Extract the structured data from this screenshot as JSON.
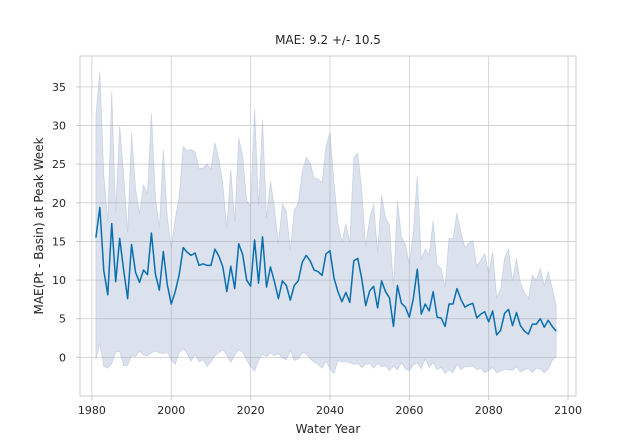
{
  "chart_data": {
    "type": "line",
    "title": "MAE: 9.2 +/- 10.5",
    "xlabel": "Water Year",
    "ylabel": "MAE(Pt - Basin) at Peak Week",
    "xlim": [
      1977,
      2102
    ],
    "ylim": [
      -5,
      39
    ],
    "xticks": [
      1980,
      2000,
      2020,
      2040,
      2060,
      2080,
      2100
    ],
    "yticks": [
      0,
      5,
      10,
      15,
      20,
      25,
      30,
      35
    ],
    "grid": true,
    "legend": "none",
    "colors": {
      "line": "#0a6fae",
      "band": "#8ea2c8",
      "grid": "#cccccc",
      "text": "#262626"
    },
    "series": [
      {
        "x": [
          1981,
          1982,
          1983,
          1984,
          1985,
          1986,
          1987,
          1988,
          1989,
          1990,
          1991,
          1992,
          1993,
          1994,
          1995,
          1996,
          1997,
          1998,
          1999,
          2000,
          2001,
          2002,
          2003,
          2004,
          2005,
          2006,
          2007,
          2008,
          2009,
          2010,
          2011,
          2012,
          2013,
          2014,
          2015,
          2016,
          2017,
          2018,
          2019,
          2020,
          2021,
          2022,
          2023,
          2024,
          2025,
          2026,
          2027,
          2028,
          2029,
          2030,
          2031,
          2032,
          2033,
          2034,
          2035,
          2036,
          2037,
          2038,
          2039,
          2040,
          2041,
          2042,
          2043,
          2044,
          2045,
          2046,
          2047,
          2048,
          2049,
          2050,
          2051,
          2052,
          2053,
          2054,
          2055,
          2056,
          2057,
          2058,
          2059,
          2060,
          2061,
          2062,
          2063,
          2064,
          2065,
          2066,
          2067,
          2068,
          2069,
          2070,
          2071,
          2072,
          2073,
          2074,
          2075,
          2076,
          2077,
          2078,
          2079,
          2080,
          2081,
          2082,
          2083,
          2084,
          2085,
          2086,
          2087,
          2088,
          2089,
          2090,
          2091,
          2092,
          2093,
          2094,
          2095,
          2096,
          2097
        ],
        "y": [
          15.5,
          19.4,
          11.2,
          8.1,
          17.3,
          9.8,
          15.4,
          11.3,
          7.6,
          14.6,
          11.0,
          9.7,
          11.3,
          10.7,
          16.1,
          10.8,
          8.7,
          13.7,
          9.4,
          6.9,
          8.5,
          10.7,
          14.2,
          13.6,
          13.2,
          13.5,
          11.9,
          12.1,
          11.9,
          11.9,
          14.0,
          13.1,
          11.7,
          8.5,
          11.8,
          8.9,
          14.7,
          13.3,
          10.0,
          9.2,
          15.2,
          9.6,
          15.6,
          9.1,
          11.7,
          9.8,
          7.6,
          9.9,
          9.3,
          7.4,
          9.3,
          9.9,
          12.3,
          13.2,
          12.5,
          11.3,
          11.1,
          10.6,
          13.4,
          13.8,
          10.3,
          8.5,
          7.2,
          8.4,
          7.1,
          12.5,
          12.8,
          10.2,
          6.7,
          8.6,
          9.2,
          6.4,
          9.9,
          8.5,
          7.7,
          4.0,
          9.3,
          7.0,
          6.5,
          5.2,
          7.6,
          11.4,
          5.6,
          6.9,
          6.0,
          8.5,
          5.2,
          5.1,
          4.0,
          6.9,
          6.9,
          8.9,
          7.5,
          6.5,
          6.8,
          7.0,
          5.1,
          5.6,
          5.9,
          4.6,
          6.0,
          2.9,
          3.5,
          5.7,
          6.2,
          4.1,
          5.8,
          4.1,
          3.4,
          3.0,
          4.3,
          4.3,
          5.0,
          3.9,
          4.8,
          4.0,
          3.4
        ],
        "lower": [
          -0.3,
          1.8,
          -1.2,
          -1.4,
          -0.8,
          0.7,
          0.8,
          -1.1,
          -1.0,
          0.2,
          0.1,
          0.8,
          0.3,
          0.2,
          0.6,
          0.8,
          0.6,
          0.5,
          0.7,
          -0.4,
          -0.9,
          0.6,
          1.1,
          0.5,
          -0.5,
          0.4,
          -0.6,
          -0.3,
          -1.2,
          -0.6,
          0.2,
          0.6,
          1.0,
          0.3,
          -0.7,
          0.3,
          1.0,
          0.6,
          -0.3,
          -1.2,
          -1.8,
          -0.4,
          0.4,
          0.1,
          0.6,
          0.2,
          0.5,
          -0.1,
          -0.3,
          0.9,
          -0.4,
          -0.2,
          0.6,
          0.5,
          -0.2,
          -0.6,
          -0.9,
          -1.4,
          -0.5,
          -1.5,
          -2.1,
          -0.4,
          -0.6,
          -0.5,
          -0.7,
          -0.9,
          -0.8,
          -1.3,
          -0.9,
          -0.8,
          -1.4,
          -0.8,
          -1.2,
          -1.1,
          -1.7,
          -1.1,
          -1.6,
          -0.7,
          -1.5,
          -1.7,
          -1.0,
          -0.7,
          -1.5,
          -0.2,
          -1.3,
          -0.7,
          -1.6,
          -1.3,
          -2.1,
          -1.6,
          -2.0,
          -0.9,
          -1.6,
          -1.2,
          -1.2,
          -1.1,
          -1.6,
          -1.4,
          -2.0,
          -1.7,
          -1.3,
          -2.0,
          -1.8,
          -1.6,
          -1.6,
          -1.7,
          -1.2,
          -1.9,
          -1.6,
          -1.4,
          -2.0,
          -1.4,
          -1.5,
          -2.0,
          -1.5,
          -0.4,
          0.1
        ],
        "upper": [
          31.3,
          37.0,
          23.6,
          17.6,
          34.4,
          18.8,
          30.0,
          23.7,
          16.2,
          29.0,
          21.9,
          18.6,
          22.3,
          21.2,
          31.6,
          20.8,
          16.8,
          26.9,
          18.1,
          14.2,
          17.9,
          20.8,
          27.3,
          26.7,
          26.9,
          26.6,
          24.4,
          24.5,
          25.0,
          24.4,
          27.8,
          25.6,
          22.4,
          16.7,
          24.3,
          17.5,
          28.4,
          26.0,
          20.3,
          19.6,
          32.2,
          19.6,
          30.8,
          18.1,
          22.8,
          19.4,
          14.7,
          19.9,
          18.9,
          13.9,
          19.0,
          20.0,
          24.0,
          25.9,
          25.2,
          23.2,
          23.1,
          22.6,
          27.3,
          29.1,
          22.7,
          17.4,
          15.0,
          17.3,
          14.9,
          25.9,
          26.4,
          21.7,
          14.3,
          18.0,
          19.8,
          13.6,
          21.0,
          18.1,
          17.1,
          9.1,
          20.2,
          15.6,
          14.6,
          12.1,
          16.2,
          23.5,
          12.7,
          14.0,
          13.3,
          17.7,
          12.0,
          11.5,
          9.1,
          15.4,
          15.4,
          18.7,
          16.2,
          14.2,
          14.8,
          15.1,
          11.8,
          12.6,
          13.4,
          10.9,
          13.7,
          7.8,
          8.8,
          12.9,
          14.0,
          9.9,
          12.8,
          9.6,
          8.4,
          7.6,
          10.6,
          10.0,
          11.5,
          9.3,
          11.1,
          9.0,
          6.7
        ]
      }
    ]
  }
}
